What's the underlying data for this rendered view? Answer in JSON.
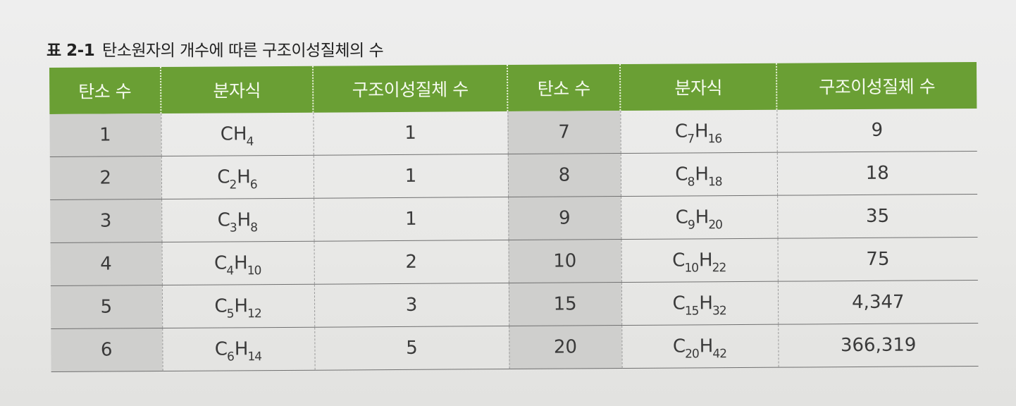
{
  "caption": {
    "label": "표 2-1",
    "text": "탄소원자의 개수에 따른 구조이성질체의 수"
  },
  "headers": [
    "탄소 수",
    "분자식",
    "구조이성질체 수",
    "탄소 수",
    "분자식",
    "구조이성질체 수"
  ],
  "rows": [
    {
      "left": {
        "carbon": "1",
        "c_label": "C",
        "c_sub": "",
        "h_label": "H",
        "h_sub": "4",
        "isomers": "1"
      },
      "right": {
        "carbon": "7",
        "c_label": "C",
        "c_sub": "7",
        "h_label": "H",
        "h_sub": "16",
        "isomers": "9"
      }
    },
    {
      "left": {
        "carbon": "2",
        "c_label": "C",
        "c_sub": "2",
        "h_label": "H",
        "h_sub": "6",
        "isomers": "1"
      },
      "right": {
        "carbon": "8",
        "c_label": "C",
        "c_sub": "8",
        "h_label": "H",
        "h_sub": "18",
        "isomers": "18"
      }
    },
    {
      "left": {
        "carbon": "3",
        "c_label": "C",
        "c_sub": "3",
        "h_label": "H",
        "h_sub": "8",
        "isomers": "1"
      },
      "right": {
        "carbon": "9",
        "c_label": "C",
        "c_sub": "9",
        "h_label": "H",
        "h_sub": "20",
        "isomers": "35"
      }
    },
    {
      "left": {
        "carbon": "4",
        "c_label": "C",
        "c_sub": "4",
        "h_label": "H",
        "h_sub": "10",
        "isomers": "2"
      },
      "right": {
        "carbon": "10",
        "c_label": "C",
        "c_sub": "10",
        "h_label": "H",
        "h_sub": "22",
        "isomers": "75"
      }
    },
    {
      "left": {
        "carbon": "5",
        "c_label": "C",
        "c_sub": "5",
        "h_label": "H",
        "h_sub": "12",
        "isomers": "3"
      },
      "right": {
        "carbon": "15",
        "c_label": "C",
        "c_sub": "15",
        "h_label": "H",
        "h_sub": "32",
        "isomers": "4,347"
      }
    },
    {
      "left": {
        "carbon": "6",
        "c_label": "C",
        "c_sub": "6",
        "h_label": "H",
        "h_sub": "14",
        "isomers": "5"
      },
      "right": {
        "carbon": "20",
        "c_label": "C",
        "c_sub": "20",
        "h_label": "H",
        "h_sub": "42",
        "isomers": "366,319"
      }
    }
  ],
  "colors": {
    "header_bg": "#6a9f34",
    "header_text": "#f6fbef",
    "carbon_cell_bg": "#cfcfcd",
    "page_bg": "#ebebe9"
  }
}
